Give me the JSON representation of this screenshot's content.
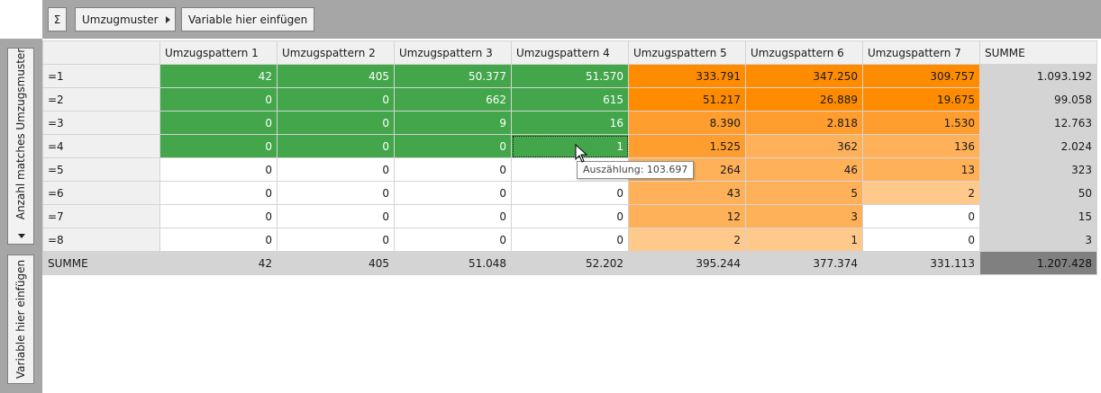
{
  "toolbar": {
    "sigma_label": "Σ",
    "dimension_label": "Umzugmuster",
    "insert_variable_label": "Variable hier einfügen"
  },
  "vertical_axis": {
    "row_variable_label": "Anzahl matches Umzugsmuster",
    "insert_variable_label": "Variable hier einfügen"
  },
  "table": {
    "columns": [
      "Umzugspattern 1",
      "Umzugspattern 2",
      "Umzugspattern 3",
      "Umzugspattern 4",
      "Umzugspattern 5",
      "Umzugspattern 6",
      "Umzugspattern 7",
      "SUMME"
    ],
    "rows": [
      {
        "label": "=1",
        "cells": [
          "42",
          "405",
          "50.377",
          "51.570",
          "333.791",
          "347.250",
          "309.757",
          "1.093.192"
        ]
      },
      {
        "label": "=2",
        "cells": [
          "0",
          "0",
          "662",
          "615",
          "51.217",
          "26.889",
          "19.675",
          "99.058"
        ]
      },
      {
        "label": "=3",
        "cells": [
          "0",
          "0",
          "9",
          "16",
          "8.390",
          "2.818",
          "1.530",
          "12.763"
        ]
      },
      {
        "label": "=4",
        "cells": [
          "0",
          "0",
          "0",
          "1",
          "1.525",
          "362",
          "136",
          "2.024"
        ]
      },
      {
        "label": "=5",
        "cells": [
          "0",
          "0",
          "0",
          "",
          "264",
          "46",
          "13",
          "323"
        ]
      },
      {
        "label": "=6",
        "cells": [
          "0",
          "0",
          "0",
          "0",
          "43",
          "5",
          "2",
          "50"
        ]
      },
      {
        "label": "=7",
        "cells": [
          "0",
          "0",
          "0",
          "0",
          "12",
          "3",
          "0",
          "15"
        ]
      },
      {
        "label": "=8",
        "cells": [
          "0",
          "0",
          "0",
          "0",
          "2",
          "1",
          "0",
          "3"
        ]
      },
      {
        "label": "SUMME",
        "cells": [
          "42",
          "405",
          "51.048",
          "52.202",
          "395.244",
          "377.374",
          "331.113",
          "1.207.428"
        ]
      }
    ]
  },
  "tooltip": {
    "text": "Auszählung: 103.697"
  },
  "colors": {
    "green": "#43a64a",
    "orange_dark": "#ff8c00",
    "orange_mid": "#ff9e2e",
    "orange_light": "#ffb15a",
    "orange_pale": "#ffc98c",
    "sum_gray": "#d4d4d4",
    "total_gray": "#808080"
  }
}
